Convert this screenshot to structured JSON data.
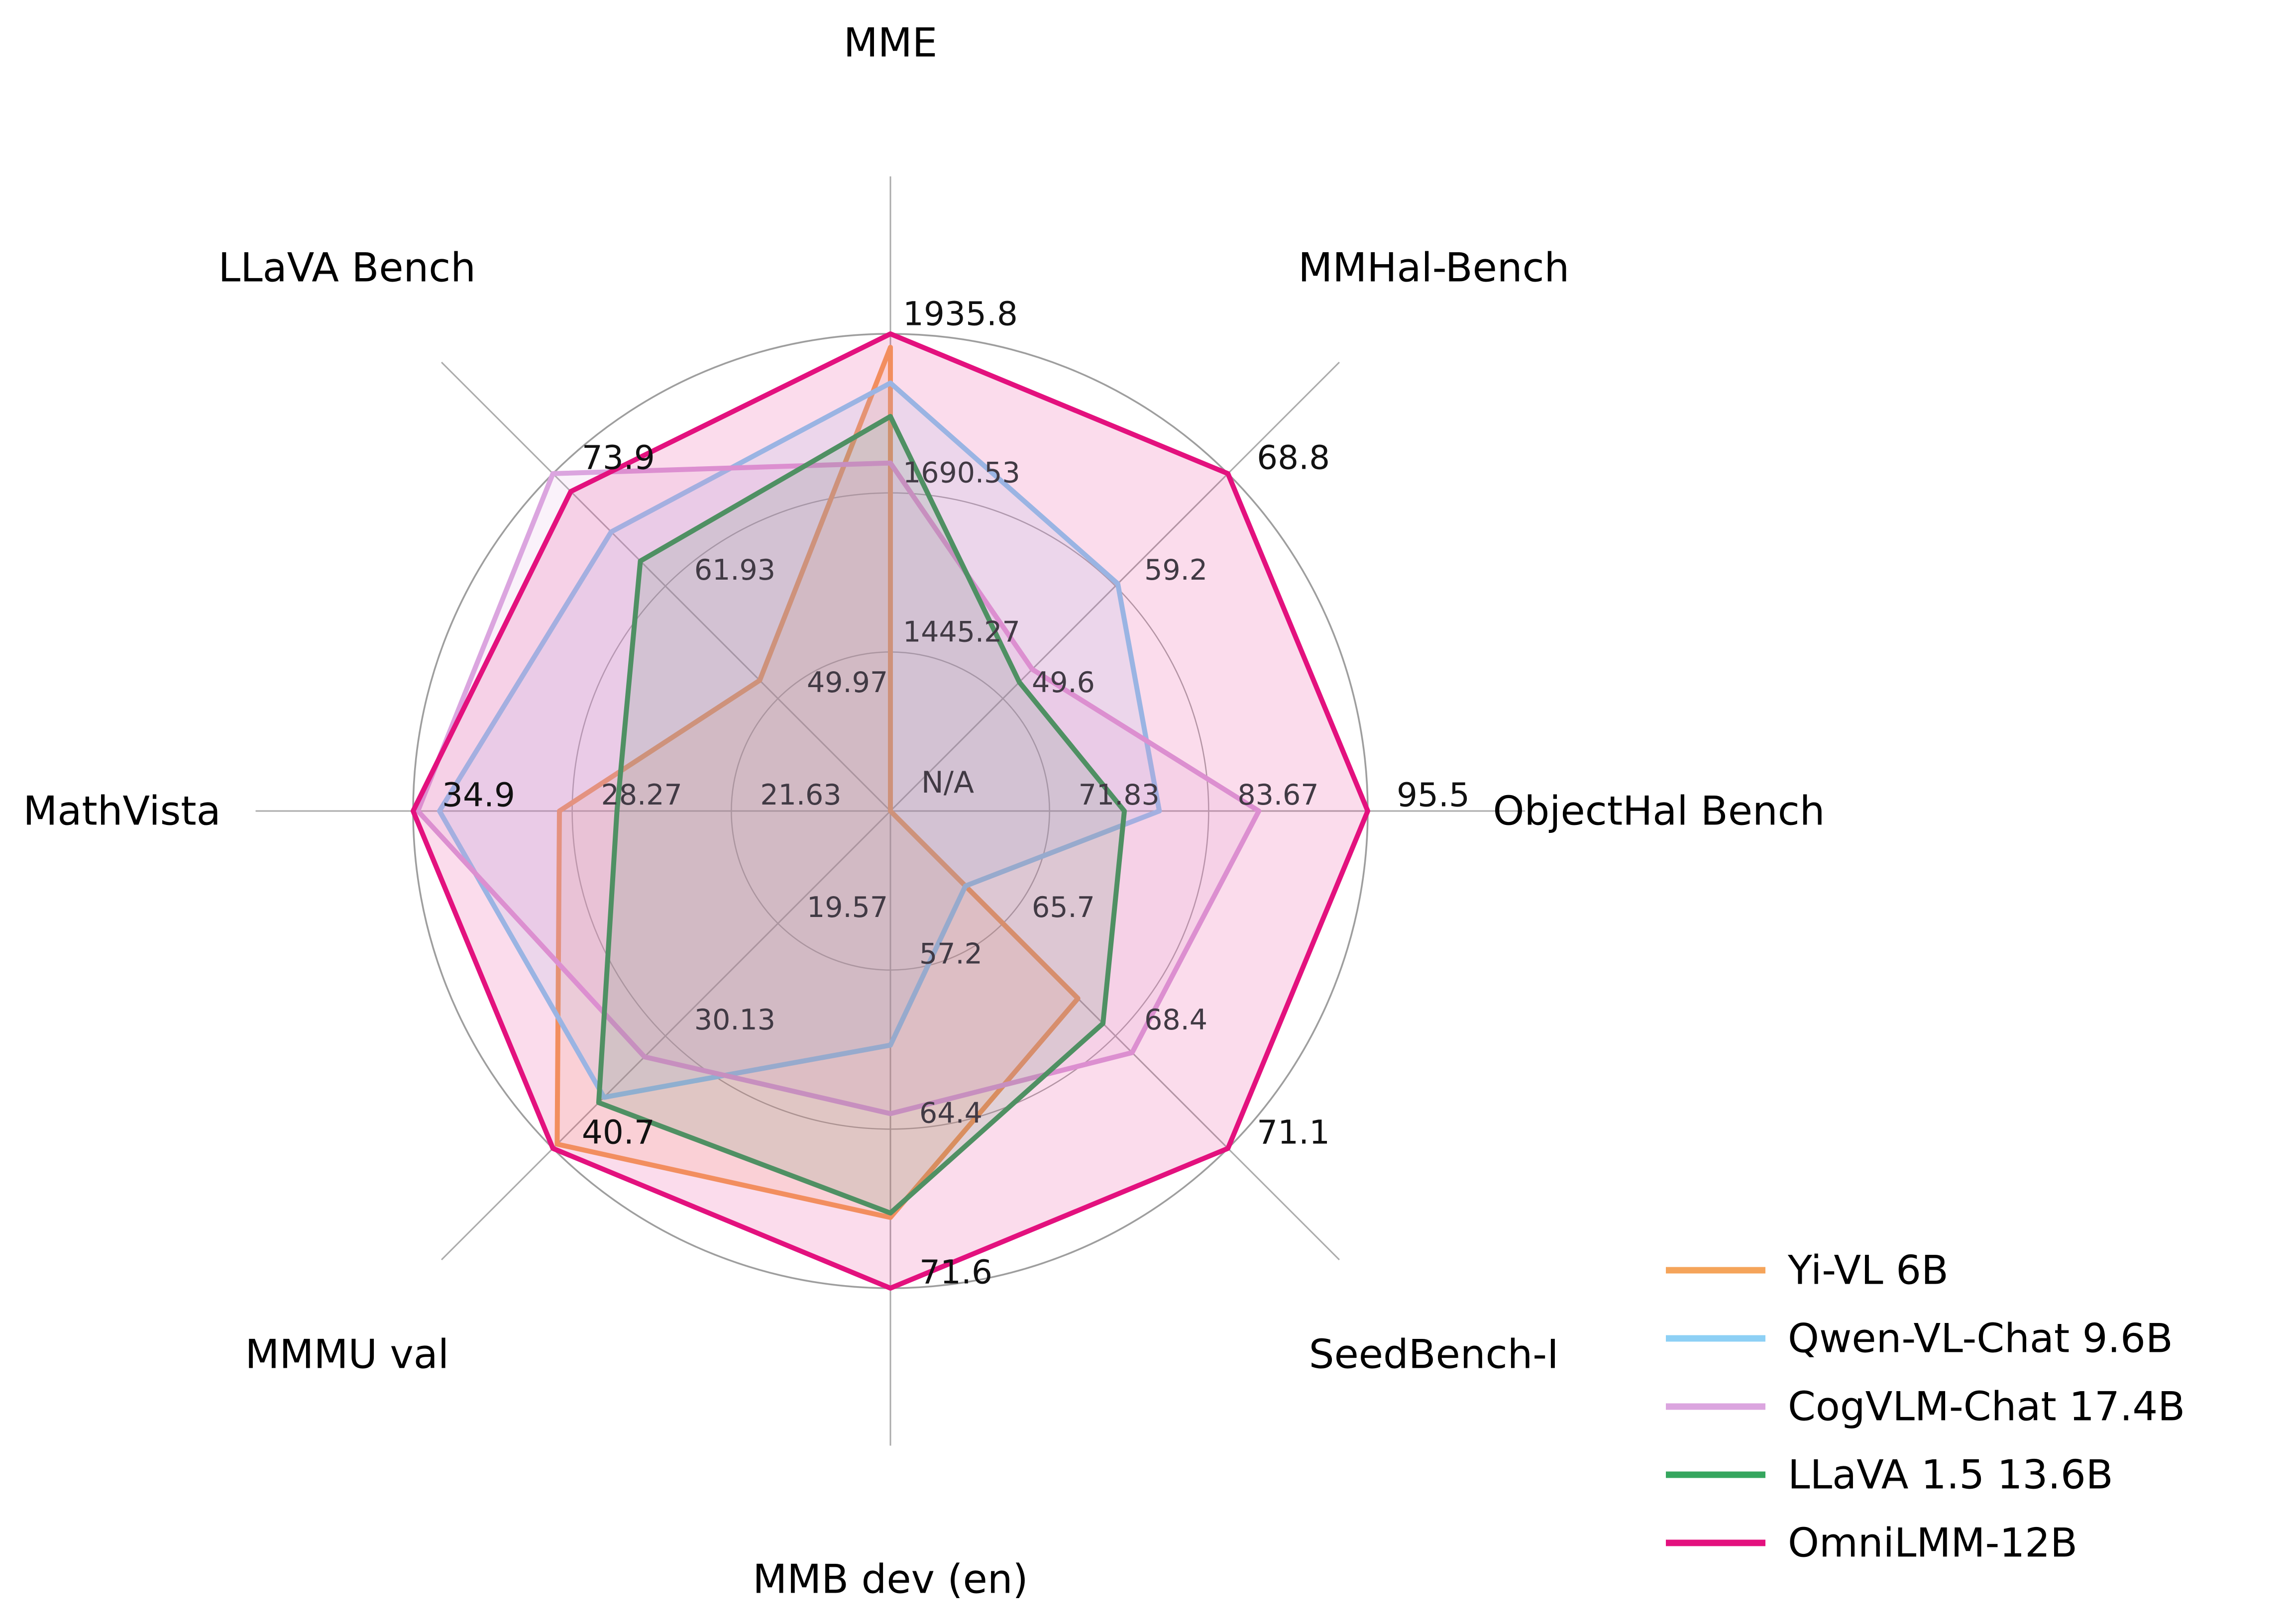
{
  "chart_data": {
    "type": "radar",
    "title": "",
    "axes": [
      {
        "label": "MME",
        "min": 1200,
        "max": 1935.8,
        "tick_labels": [
          "1445.27",
          "1690.53",
          "1935.8"
        ]
      },
      {
        "label": "MMHal-Bench",
        "min": 40,
        "max": 68.8,
        "tick_labels": [
          "49.6",
          "59.2",
          "68.8"
        ]
      },
      {
        "label": "ObjectHal Bench",
        "min": 60,
        "max": 95.5,
        "tick_labels": [
          "71.83",
          "83.67",
          "95.5"
        ]
      },
      {
        "label": "SeedBench-I",
        "min": 63,
        "max": 71.1,
        "tick_labels": [
          "65.7",
          "68.4",
          "71.1"
        ]
      },
      {
        "label": "MMB dev (en)",
        "min": 50,
        "max": 71.6,
        "tick_labels": [
          "57.2",
          "64.4",
          "71.6"
        ]
      },
      {
        "label": "MMMU val",
        "min": 9,
        "max": 40.7,
        "tick_labels": [
          "19.57",
          "30.13",
          "40.7"
        ]
      },
      {
        "label": "MathVista",
        "min": 15,
        "max": 34.9,
        "tick_labels": [
          "21.63",
          "28.27",
          "34.9"
        ]
      },
      {
        "label": "LLaVA Bench",
        "min": 38,
        "max": 73.9,
        "tick_labels": [
          "49.97",
          "61.93",
          "73.9"
        ]
      }
    ],
    "rings_fraction": [
      0.3333,
      0.6667,
      1.0
    ],
    "series": [
      {
        "name": "Yi-VL 6B",
        "color": "#F5A45A",
        "values": [
          1915.1,
          null,
          null,
          67.5,
          68.4,
          40.3,
          28.8,
          51.9
        ]
      },
      {
        "name": "Qwen-VL-Chat 9.6B",
        "color": "#8DD0F5",
        "values": [
          1860.0,
          59.4,
          80.0,
          64.8,
          60.6,
          35.9,
          33.8,
          67.7
        ]
      },
      {
        "name": "CogVLM-Chat 17.4B",
        "color": "#DBA5DF",
        "values": [
          1736.6,
          52.1,
          87.4,
          68.8,
          63.7,
          32.1,
          34.7,
          73.9
        ]
      },
      {
        "name": "LLaVA 1.5 13.6B",
        "color": "#35A65E",
        "values": [
          1808.4,
          51.0,
          77.4,
          68.1,
          68.2,
          36.4,
          26.4,
          64.6
        ]
      },
      {
        "name": "OmniLMM-12B",
        "color": "#E3117E",
        "values": [
          1935.8,
          68.8,
          95.5,
          71.1,
          71.6,
          40.7,
          34.9,
          72.0
        ]
      }
    ],
    "center_label": "N/A",
    "na_policy": "missing values are plotted at the center",
    "grid": {
      "color": "#ABABAB",
      "outer_ring_color": "#9E9E9E",
      "rings_on": true,
      "spokes_on": true
    },
    "tick_color": "#413A44",
    "fill_opacity": 0.15,
    "legend_position": "lower right"
  }
}
